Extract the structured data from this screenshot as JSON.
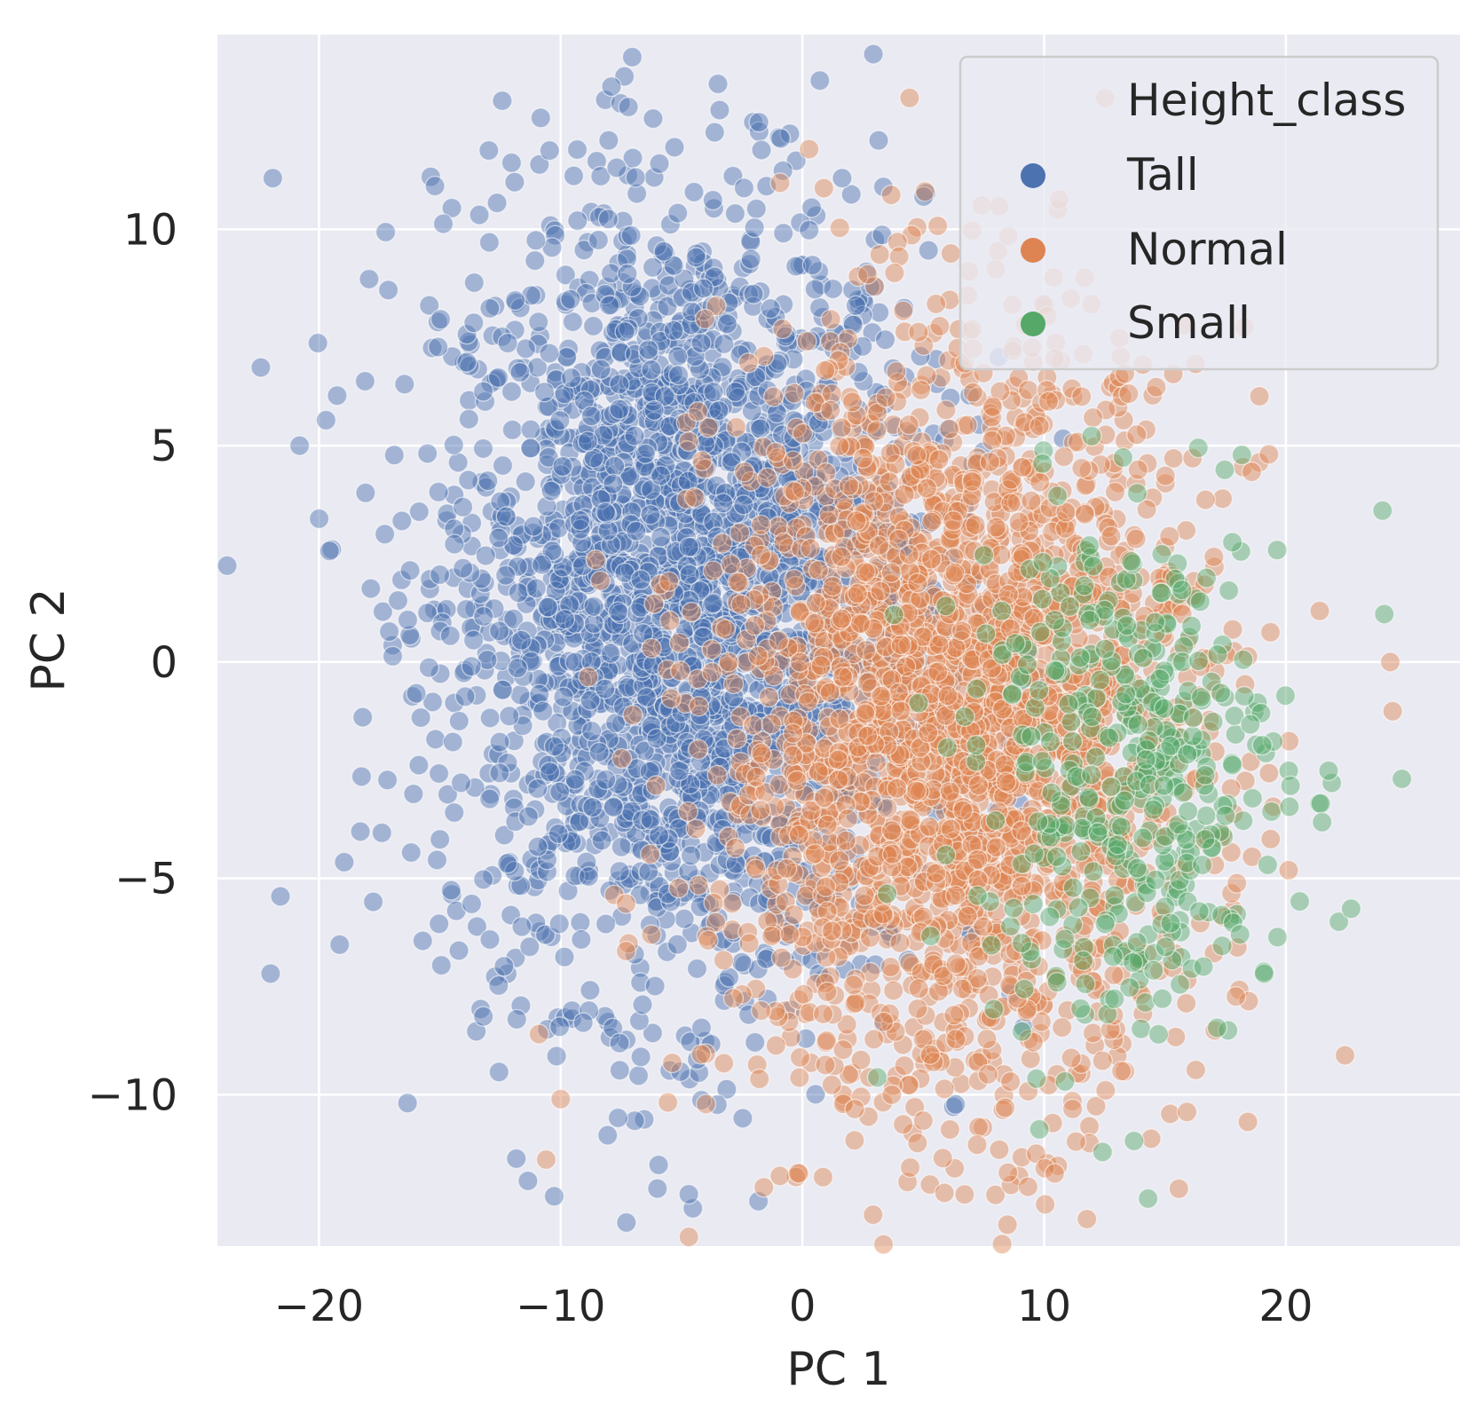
{
  "chart_data": {
    "type": "scatter",
    "xlabel": "PC 1",
    "ylabel": "PC 2",
    "xlim": [
      -24.2,
      27.2
    ],
    "ylim": [
      -13.5,
      14.5
    ],
    "xticks": [
      -20,
      -10,
      0,
      10,
      20
    ],
    "xtick_labels": [
      "−20",
      "−10",
      "0",
      "10",
      "20"
    ],
    "yticks": [
      -10,
      -5,
      0,
      5,
      10
    ],
    "ytick_labels": [
      "−10",
      "−5",
      "0",
      "5",
      "10"
    ],
    "grid": true,
    "background": "#eaeaf2",
    "grid_color": "#ffffff",
    "point_alpha": 0.45,
    "legend": {
      "title": "Height_class",
      "placement": "top-right"
    },
    "series": [
      {
        "name": "Tall",
        "color": "#4c72b0",
        "n_points": 2600,
        "center": [
          -5.0,
          1.5
        ],
        "spread": [
          5.0,
          4.6
        ],
        "outliers": [
          [
            -7.9,
            13.3
          ],
          [
            -22.0,
            -7.2
          ],
          [
            -20.8,
            5.0
          ],
          [
            -4.7,
            -12.3
          ],
          [
            -0.9,
            12.1
          ],
          [
            -6.9,
            11.2
          ],
          [
            -15.2,
            11.0
          ],
          [
            -9.3,
            10.2
          ]
        ]
      },
      {
        "name": "Normal",
        "color": "#dd8452",
        "n_points": 2500,
        "center": [
          6.5,
          -1.5
        ],
        "spread": [
          5.0,
          4.4
        ],
        "outliers": [
          [
            -10.6,
            -11.5
          ],
          [
            -10.0,
            -10.1
          ],
          [
            3.7,
            -10.0
          ],
          [
            5.0,
            -10.6
          ],
          [
            13.5,
            6.2
          ],
          [
            19.3,
            4.8
          ],
          [
            11.1,
            8.4
          ],
          [
            -10.9,
            -8.6
          ]
        ]
      },
      {
        "name": "Small",
        "color": "#55a868",
        "n_points": 420,
        "center": [
          13.5,
          -2.5
        ],
        "spread": [
          3.2,
          3.0
        ],
        "outliers": [
          [
            24.8,
            -2.7
          ],
          [
            24.0,
            3.5
          ],
          [
            22.7,
            -5.7
          ],
          [
            21.5,
            -3.7
          ],
          [
            14.3,
            -12.4
          ],
          [
            9.8,
            -10.8
          ],
          [
            3.1,
            -9.6
          ],
          [
            19.1,
            -7.2
          ]
        ]
      }
    ]
  }
}
